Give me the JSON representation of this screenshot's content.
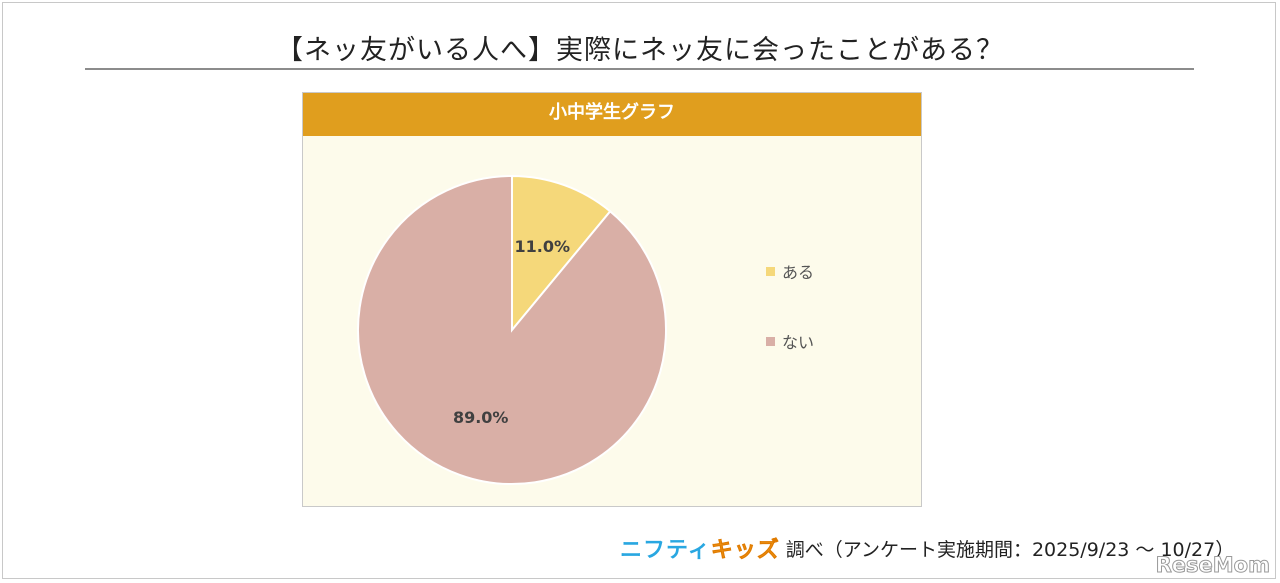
{
  "page": {
    "title": "【ネッ友がいる人へ】実際にネッ友に会ったことがある？"
  },
  "chart_data": {
    "type": "pie",
    "title": "小中学生グラフ",
    "slices": [
      {
        "label": "ある",
        "value": 11.0,
        "value_label": "11.0%",
        "color": "#f5d87a"
      },
      {
        "label": "ない",
        "value": 89.0,
        "value_label": "89.0%",
        "color": "#d9afa6"
      }
    ],
    "legend_position": "right",
    "start_angle_deg": 0,
    "direction": "clockwise"
  },
  "footer": {
    "brand_part1": "ニフティ",
    "brand_part2": "キッズ",
    "text": "調べ（アンケート実施期間：2025/9/23 ～ 10/27）"
  },
  "watermark": "ReseMom"
}
